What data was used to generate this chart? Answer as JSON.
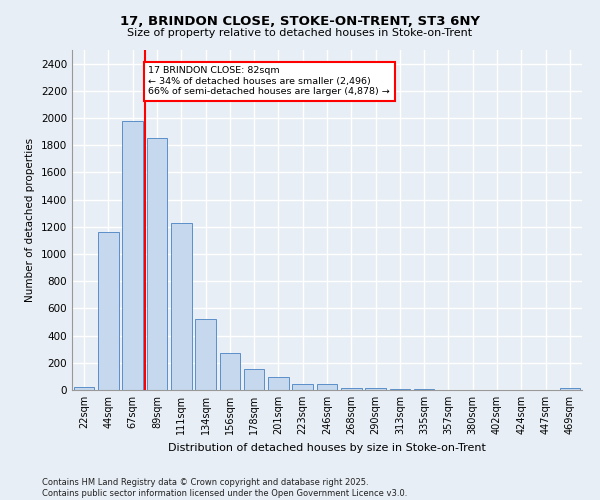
{
  "title1": "17, BRINDON CLOSE, STOKE-ON-TRENT, ST3 6NY",
  "title2": "Size of property relative to detached houses in Stoke-on-Trent",
  "xlabel": "Distribution of detached houses by size in Stoke-on-Trent",
  "ylabel": "Number of detached properties",
  "bar_labels": [
    "22sqm",
    "44sqm",
    "67sqm",
    "89sqm",
    "111sqm",
    "134sqm",
    "156sqm",
    "178sqm",
    "201sqm",
    "223sqm",
    "246sqm",
    "268sqm",
    "290sqm",
    "313sqm",
    "335sqm",
    "357sqm",
    "380sqm",
    "402sqm",
    "424sqm",
    "447sqm",
    "469sqm"
  ],
  "bar_values": [
    25,
    1160,
    1980,
    1850,
    1230,
    520,
    275,
    155,
    95,
    45,
    45,
    18,
    12,
    8,
    5,
    3,
    3,
    2,
    2,
    2,
    15
  ],
  "bar_color": "#c5d8ed",
  "bar_edge_color": "#5b8fc9",
  "background_color": "#e8eef5",
  "grid_color": "#ffffff",
  "vline_x": 2.5,
  "vline_color": "red",
  "annotation_text": "17 BRINDON CLOSE: 82sqm\n← 34% of detached houses are smaller (2,496)\n66% of semi-detached houses are larger (4,878) →",
  "annotation_box_color": "white",
  "annotation_border_color": "red",
  "ylim": [
    0,
    2500
  ],
  "yticks": [
    0,
    200,
    400,
    600,
    800,
    1000,
    1200,
    1400,
    1600,
    1800,
    2000,
    2200,
    2400
  ],
  "footer1": "Contains HM Land Registry data © Crown copyright and database right 2025.",
  "footer2": "Contains public sector information licensed under the Open Government Licence v3.0."
}
